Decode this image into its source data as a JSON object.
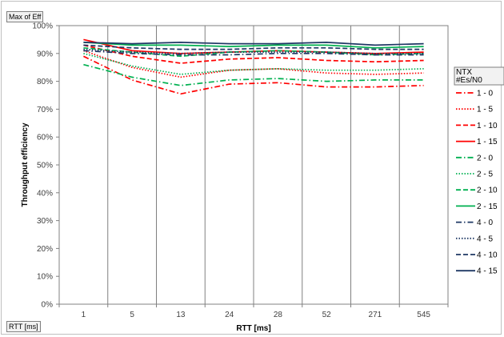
{
  "chart_data": {
    "type": "line",
    "title": "",
    "xlabel": "RTT [ms]",
    "ylabel": "Throughput efficiency",
    "categories": [
      "1",
      "5",
      "13",
      "24",
      "28",
      "52",
      "271",
      "545"
    ],
    "ylim": [
      0,
      100
    ],
    "yticks": [
      "0%",
      "10%",
      "20%",
      "30%",
      "40%",
      "50%",
      "60%",
      "70%",
      "80%",
      "90%",
      "100%"
    ],
    "grid": "vertical lines only",
    "legend_position": "right",
    "legend_header": [
      "NTX",
      "#Es/N0"
    ],
    "series": [
      {
        "name": "1 - 0",
        "color": "#ff0000",
        "dash": "dashdot",
        "values": [
          89,
          80.5,
          75.5,
          79,
          79.5,
          78,
          78,
          78.5
        ]
      },
      {
        "name": "1 - 5",
        "color": "#ff0000",
        "dash": "dotted",
        "values": [
          91,
          85,
          81.5,
          84,
          84.5,
          83,
          82.5,
          83
        ]
      },
      {
        "name": "1 - 10",
        "color": "#ff0000",
        "dash": "dashed",
        "values": [
          93,
          89,
          86.5,
          88,
          88.5,
          87.5,
          87,
          87.5
        ]
      },
      {
        "name": "1 - 15",
        "color": "#ff0000",
        "dash": "solid",
        "values": [
          95,
          91,
          90,
          90.5,
          91,
          90.5,
          90,
          90.5
        ]
      },
      {
        "name": "2 - 0",
        "color": "#00b050",
        "dash": "dashdot",
        "values": [
          86,
          81.5,
          78.5,
          80.5,
          81,
          80,
          80.5,
          80.5
        ]
      },
      {
        "name": "2 - 5",
        "color": "#00b050",
        "dash": "dotted",
        "values": [
          90,
          85.5,
          82.5,
          84,
          84.5,
          84,
          84,
          84.5
        ]
      },
      {
        "name": "2 - 10",
        "color": "#00b050",
        "dash": "dashed",
        "values": [
          92,
          90.5,
          89,
          90.5,
          91,
          90.5,
          89.5,
          90
        ]
      },
      {
        "name": "2 - 15",
        "color": "#00b050",
        "dash": "solid",
        "values": [
          94,
          93,
          93,
          92.5,
          93,
          93,
          92,
          92.5
        ]
      },
      {
        "name": "4 - 0",
        "color": "#1f3864",
        "dash": "dashdot",
        "values": [
          91,
          90,
          89.5,
          89.5,
          90,
          90,
          89.5,
          89.5
        ]
      },
      {
        "name": "4 - 5",
        "color": "#1f3864",
        "dash": "dotted",
        "values": [
          91.5,
          90.5,
          90,
          90.5,
          90.5,
          90.5,
          90,
          90
        ]
      },
      {
        "name": "4 - 10",
        "color": "#1f3864",
        "dash": "dashed",
        "values": [
          93,
          92,
          91.5,
          91.5,
          92,
          92,
          91.5,
          91.5
        ]
      },
      {
        "name": "4 - 15",
        "color": "#1f3864",
        "dash": "solid",
        "values": [
          94,
          93.5,
          94,
          93.5,
          93.5,
          94,
          93,
          93.5
        ]
      }
    ]
  },
  "pivot_buttons": {
    "value_field": "Max of Eff",
    "axis_field": "RTT [ms]"
  }
}
